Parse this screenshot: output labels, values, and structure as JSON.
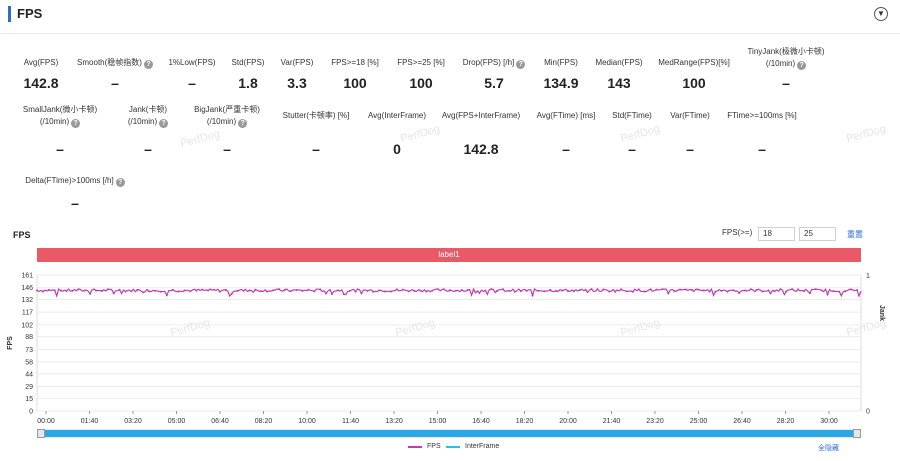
{
  "header": {
    "title": "FPS",
    "collapse_icon": "chevron-down-icon"
  },
  "metrics_row1": [
    {
      "label": "Avg(FPS)",
      "value": "142.8",
      "help": false
    },
    {
      "label": "Smooth(稳帧指数)",
      "value": "–",
      "help": true
    },
    {
      "label": "1%Low(FPS)",
      "value": "–",
      "help": false
    },
    {
      "label": "Std(FPS)",
      "value": "1.8",
      "help": false
    },
    {
      "label": "Var(FPS)",
      "value": "3.3",
      "help": false
    },
    {
      "label": "FPS>=18 [%]",
      "value": "100",
      "help": false
    },
    {
      "label": "FPS>=25 [%]",
      "value": "100",
      "help": false
    },
    {
      "label": "Drop(FPS) [/h]",
      "value": "5.7",
      "help": true
    },
    {
      "label": "Min(FPS)",
      "value": "134.9",
      "help": false
    },
    {
      "label": "Median(FPS)",
      "value": "143",
      "help": false
    },
    {
      "label": "MedRange(FPS)[%]",
      "value": "100",
      "help": false
    },
    {
      "label": "TinyJank(极微小卡顿)",
      "label2": "(/10min)",
      "value": "–",
      "help": true
    }
  ],
  "metrics_row2": [
    {
      "label": "SmallJank(微小卡顿)",
      "label2": "(/10min)",
      "value": "–",
      "help": true
    },
    {
      "label": "Jank(卡顿)",
      "label2": "(/10min)",
      "value": "–",
      "help": true
    },
    {
      "label": "BigJank(严重卡顿)",
      "label2": "(/10min)",
      "value": "–",
      "help": true
    },
    {
      "label": "Stutter(卡顿率) [%]",
      "value": "–",
      "help": false
    },
    {
      "label": "Avg(InterFrame)",
      "value": "0",
      "help": false
    },
    {
      "label": "Avg(FPS+InterFrame)",
      "value": "142.8",
      "help": false
    },
    {
      "label": "Avg(FTime) [ms]",
      "value": "–",
      "help": false
    },
    {
      "label": "Std(FTime)",
      "value": "–",
      "help": false
    },
    {
      "label": "Var(FTime)",
      "value": "–",
      "help": false
    },
    {
      "label": "FTime>=100ms [%]",
      "value": "–",
      "help": false
    }
  ],
  "metrics_row3": [
    {
      "label": "Delta(FTime)>100ms [/h]",
      "value": "–",
      "help": true
    }
  ],
  "watermark": "PerfDog",
  "chart": {
    "title": "FPS",
    "filter_label": "FPS(>=)",
    "filter_value_1": "18",
    "filter_value_2": "25",
    "reset_label": "重置",
    "label_bar": "label1",
    "hide_all_label": "全隐藏"
  },
  "chart_data": {
    "type": "line",
    "title": "FPS",
    "ylabel": "FPS",
    "y2label": "Jank",
    "y_ticks": [
      0,
      15,
      29,
      44,
      58,
      73,
      88,
      102,
      117,
      132,
      146,
      161
    ],
    "ylim": [
      0,
      161
    ],
    "y2_ticks": [
      0,
      1
    ],
    "x_ticks": [
      "00:00",
      "01:40",
      "03:20",
      "05:00",
      "06:40",
      "08:20",
      "10:00",
      "11:40",
      "13:20",
      "15:00",
      "16:40",
      "18:20",
      "20:00",
      "21:40",
      "23:20",
      "25:00",
      "26:40",
      "28:20",
      "30:00"
    ],
    "series": [
      {
        "name": "FPS",
        "color": "#c13bb5",
        "values_summary": {
          "mean": 142.8,
          "min": 134.9,
          "std": 1.8
        }
      },
      {
        "name": "InterFrame",
        "color": "#2bbfe0",
        "values_summary": {
          "mean": 0
        }
      }
    ],
    "grid": true,
    "legend_position": "bottom"
  }
}
